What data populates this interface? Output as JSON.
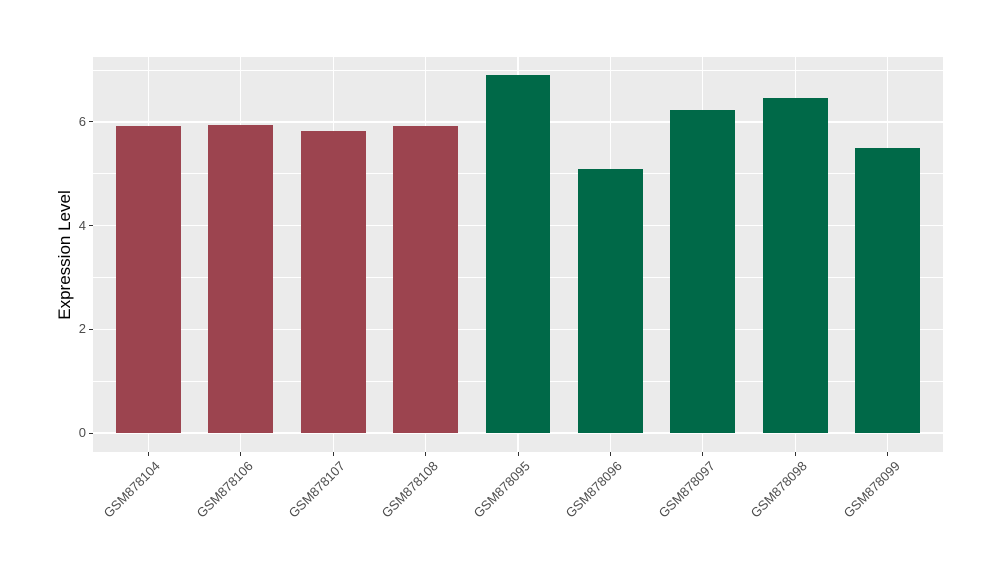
{
  "figure": {
    "background": "#FFFFFF",
    "panel_background": "#EBEBEB",
    "grid_color": "#FFFFFF",
    "tick_color": "#333333",
    "tick_label_color": "#4D4D4D",
    "axis_title_color": "#000000"
  },
  "chart_data": {
    "type": "bar",
    "title": "",
    "xlabel": "",
    "ylabel": "Expression Level",
    "categories": [
      "GSM878104",
      "GSM878106",
      "GSM878107",
      "GSM878108",
      "GSM878095",
      "GSM878096",
      "GSM878097",
      "GSM878098",
      "GSM878099"
    ],
    "values": [
      5.91,
      5.93,
      5.82,
      5.92,
      6.9,
      5.09,
      6.22,
      6.45,
      5.49
    ],
    "bars": [
      {
        "label": "GSM878104",
        "value": 5.91,
        "group": "maroon"
      },
      {
        "label": "GSM878106",
        "value": 5.93,
        "group": "maroon"
      },
      {
        "label": "GSM878107",
        "value": 5.82,
        "group": "maroon"
      },
      {
        "label": "GSM878108",
        "value": 5.92,
        "group": "maroon"
      },
      {
        "label": "GSM878095",
        "value": 6.9,
        "group": "green"
      },
      {
        "label": "GSM878096",
        "value": 5.09,
        "group": "green"
      },
      {
        "label": "GSM878097",
        "value": 6.22,
        "group": "green"
      },
      {
        "label": "GSM878098",
        "value": 6.45,
        "group": "green"
      },
      {
        "label": "GSM878099",
        "value": 5.49,
        "group": "green"
      }
    ],
    "group_colors": {
      "maroon": "#9C444F",
      "green": "#006948"
    },
    "yticks": [
      0,
      2,
      4,
      6
    ],
    "yticks_minor": [
      1,
      3,
      5,
      7
    ],
    "ylim": [
      0,
      7.25
    ],
    "grid": "on",
    "legend_position": "none",
    "x_label_angle": 45,
    "bar_width_fraction": 0.7
  }
}
